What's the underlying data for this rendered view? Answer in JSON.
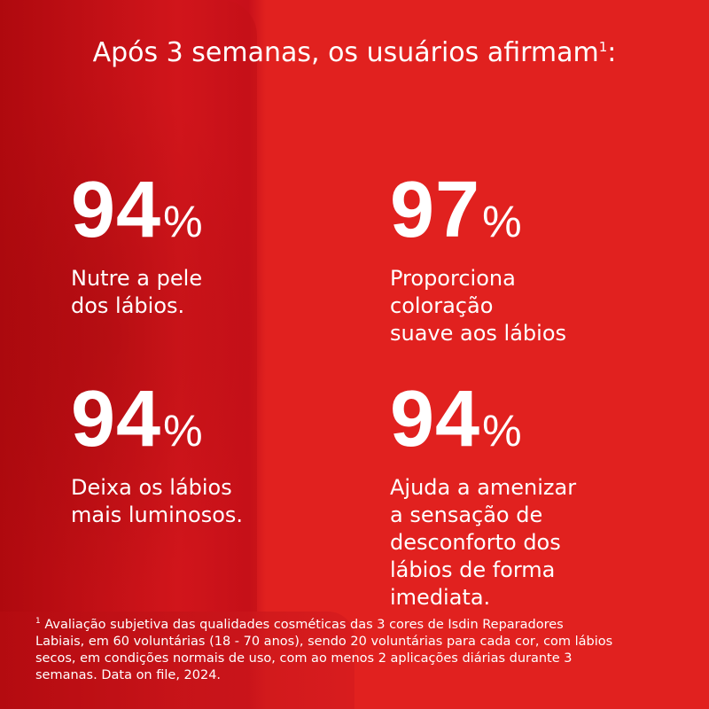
{
  "header": {
    "title": "Após 3 semanas, os usuários afirmam",
    "note": "1",
    "end": ":"
  },
  "stats": [
    {
      "value": 94,
      "unit": "%",
      "lines": [
        "Nutre a pele",
        "dos lábios."
      ]
    },
    {
      "value": 97,
      "unit": "%",
      "lines": [
        "Proporciona",
        "coloração",
        "suave aos lábios"
      ]
    },
    {
      "value": 94,
      "unit": "%",
      "lines": [
        "Deixa os lábios",
        "mais luminosos."
      ]
    },
    {
      "value": 94,
      "unit": "%",
      "lines": [
        "Ajuda a amenizar",
        "a sensação de",
        "desconforto dos",
        "lábios de forma",
        "imediata."
      ]
    }
  ],
  "footnote": {
    "marker": "1",
    "lines": [
      "Avaliação subjetiva das qualidades cosméticas das 3 cores de Isdin Reparadores",
      "Labiais, em 60 voluntárias (18 - 70 anos), sendo 20 voluntárias para cada cor, com lábios",
      "secos, em condições normais de uso, com ao menos 2 aplicações diárias durante 3",
      "semanas. Data on file, 2024."
    ]
  }
}
